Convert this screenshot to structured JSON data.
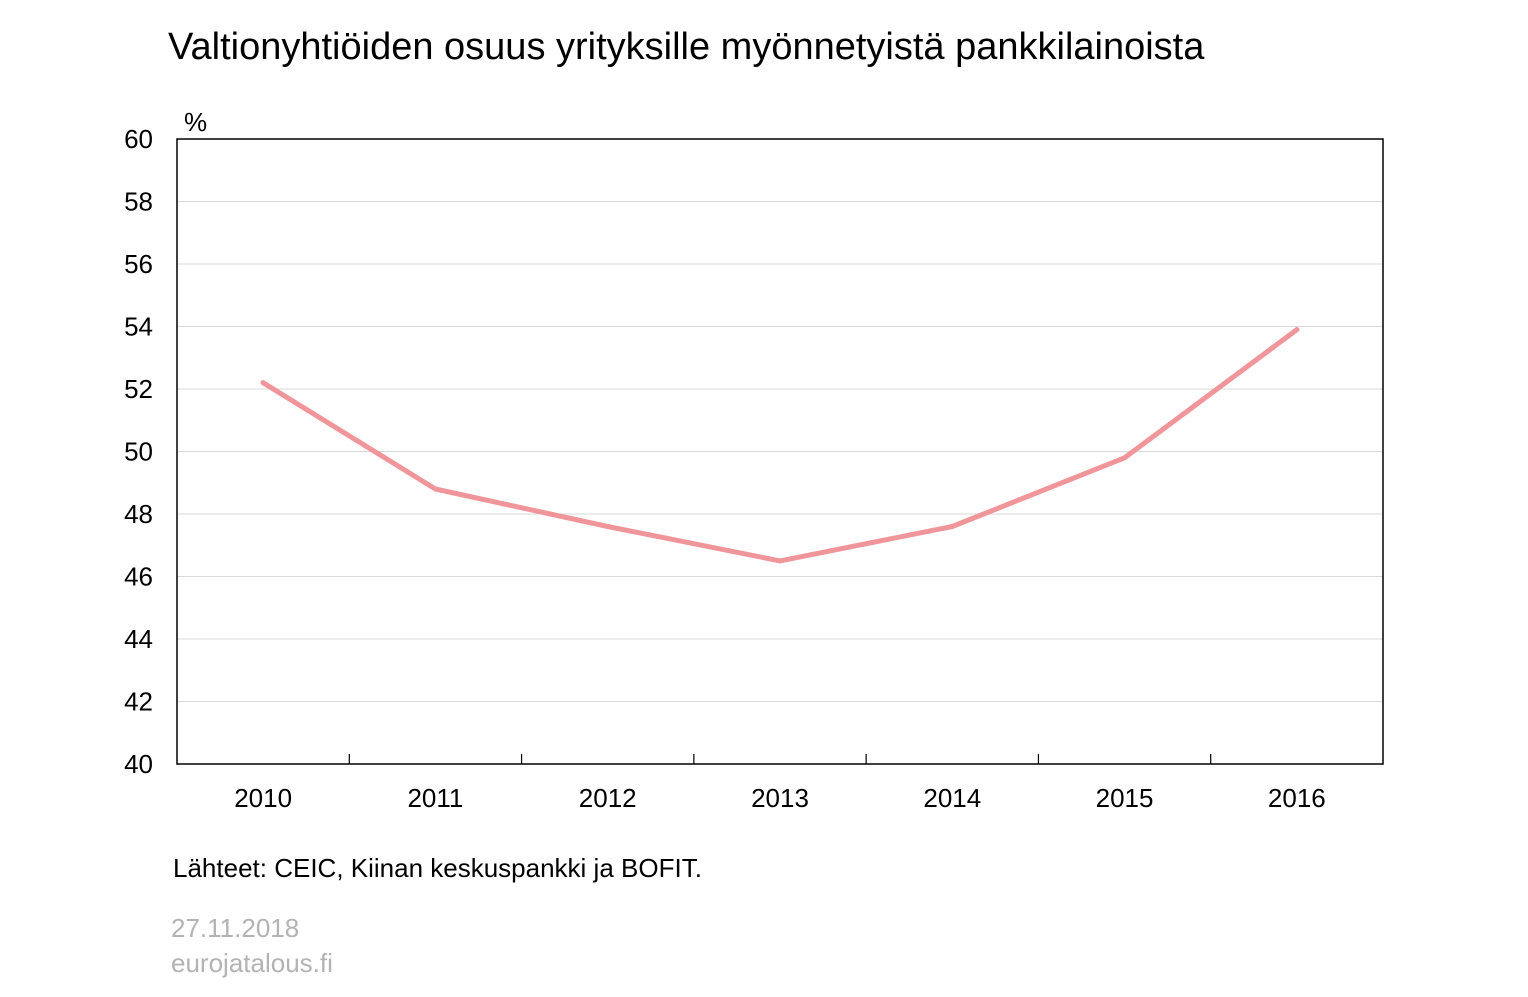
{
  "chart_data": {
    "type": "line",
    "title": "Valtionyhtiöiden osuus yrityksille myönnetyistä pankkilainoista",
    "ylabel": "%",
    "xlabel": "",
    "categories": [
      "2010",
      "2011",
      "2012",
      "2013",
      "2014",
      "2015",
      "2016"
    ],
    "series": [
      {
        "values": [
          52.2,
          48.8,
          47.6,
          46.5,
          47.6,
          49.8,
          53.9
        ],
        "color": "#f0959a"
      }
    ],
    "ylim": [
      40,
      60
    ],
    "yticks": [
      "40",
      "42",
      "44",
      "46",
      "48",
      "50",
      "52",
      "54",
      "56",
      "58",
      "60"
    ],
    "grid": true,
    "legend": "none"
  },
  "footer": {
    "source": "Lähteet: CEIC, Kiinan keskuspankki ja BOFIT.",
    "date": "27.11.2018",
    "site": "eurojatalous.fi"
  },
  "colors": {
    "series": "#f0959a",
    "grid": "#d9d9d9",
    "frame": "#000000",
    "footer_gray": "#b3b3b3"
  }
}
